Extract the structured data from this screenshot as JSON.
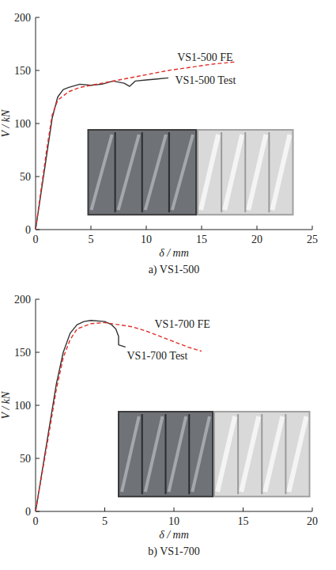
{
  "chart_data": [
    {
      "type": "line",
      "caption": "a) VS1-500",
      "x_label": "δ / mm",
      "y_label": "V / kN",
      "xlim": [
        0,
        25
      ],
      "xticks": [
        0,
        5,
        10,
        15,
        20,
        25
      ],
      "ylim": [
        0,
        200
      ],
      "yticks": [
        0,
        50,
        100,
        150,
        200
      ],
      "series": [
        {
          "color": "#333333",
          "line_style": "solid",
          "x": [
            0,
            0.5,
            1,
            1.5,
            2,
            2.5,
            3,
            4,
            5,
            6,
            7,
            8,
            8.5,
            9,
            10,
            11,
            12
          ],
          "values": [
            0,
            35,
            70,
            105,
            125,
            132,
            134,
            137,
            136,
            137,
            140,
            138,
            135,
            140,
            141,
            142,
            143
          ]
        },
        {
          "color": "#e0302a",
          "line_style": "dashed",
          "x": [
            0,
            0.5,
            1,
            1.5,
            2,
            3,
            4,
            5,
            6,
            8,
            10,
            12,
            14,
            16,
            18
          ],
          "values": [
            0,
            38,
            75,
            108,
            122,
            130,
            134,
            136,
            138,
            142,
            146,
            150,
            153,
            156,
            158
          ]
        }
      ],
      "annotations": [
        {
          "text": "VS1-500 FE",
          "x": 12.8,
          "y": 163
        },
        {
          "text": "VS1-500 Test",
          "x": 12.6,
          "y": 141
        }
      ]
    },
    {
      "type": "line",
      "caption": "b) VS1-700",
      "x_label": "δ / mm",
      "y_label": "V / kN",
      "xlim": [
        0,
        20
      ],
      "xticks": [
        0,
        5,
        10,
        15,
        20
      ],
      "ylim": [
        0,
        200
      ],
      "yticks": [
        0,
        50,
        100,
        150,
        200
      ],
      "series": [
        {
          "color": "#333333",
          "line_style": "solid",
          "x": [
            0,
            0.5,
            1,
            1.5,
            2,
            2.5,
            3,
            3.5,
            4,
            5,
            5.5,
            5.8,
            6,
            6,
            6.5
          ],
          "values": [
            0,
            40,
            80,
            120,
            150,
            168,
            176,
            179,
            180,
            179,
            176,
            172,
            165,
            157,
            155
          ]
        },
        {
          "color": "#e0302a",
          "line_style": "dashed",
          "x": [
            0,
            0.5,
            1,
            1.5,
            2,
            2.5,
            3,
            4,
            5,
            6,
            7,
            8,
            9,
            10,
            11,
            12
          ],
          "values": [
            0,
            38,
            76,
            115,
            145,
            162,
            172,
            177,
            178,
            176,
            174,
            170,
            165,
            160,
            155,
            151
          ]
        }
      ],
      "annotations": [
        {
          "text": "VS1-700 FE",
          "x": 8.6,
          "y": 177
        },
        {
          "text": "VS1-700 Test",
          "x": 6.6,
          "y": 147
        }
      ]
    }
  ]
}
